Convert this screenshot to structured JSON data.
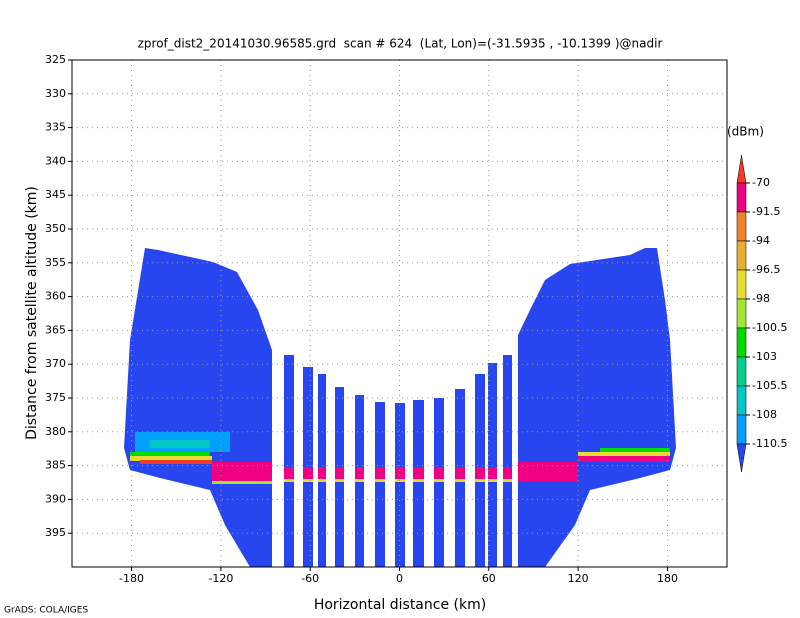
{
  "chart_data": {
    "type": "heatmap",
    "title": "zprof_dist2_20141030.96585.grd  scan # 624  (Lat, Lon)=(-31.5935 , -10.1399 )@nadir",
    "x_label": "Horizontal distance (km)",
    "y_label": "Distance from satellite altitude (km)",
    "footer": "GrADS: COLA/IGES",
    "xlim": [
      -220,
      220
    ],
    "xticks": [
      -180,
      -120,
      -60,
      0,
      60,
      120,
      180
    ],
    "ylim": [
      325,
      400
    ],
    "yticks": [
      325,
      330,
      335,
      340,
      345,
      350,
      355,
      360,
      365,
      370,
      375,
      380,
      385,
      390,
      395
    ],
    "y_inverted": true,
    "grid": true,
    "colorbar": {
      "label": "(dBm)",
      "levels": [
        -70,
        -91.5,
        -94,
        -96.5,
        -98,
        -100.5,
        -103,
        -105.5,
        -108,
        -110.5
      ],
      "colors": [
        "#f03c28",
        "#f00082",
        "#f08228",
        "#e6af2d",
        "#e6dc32",
        "#a0e632",
        "#00dc00",
        "#00d28c",
        "#00c8c8",
        "#00a0ff",
        "#2846f0"
      ]
    }
  }
}
